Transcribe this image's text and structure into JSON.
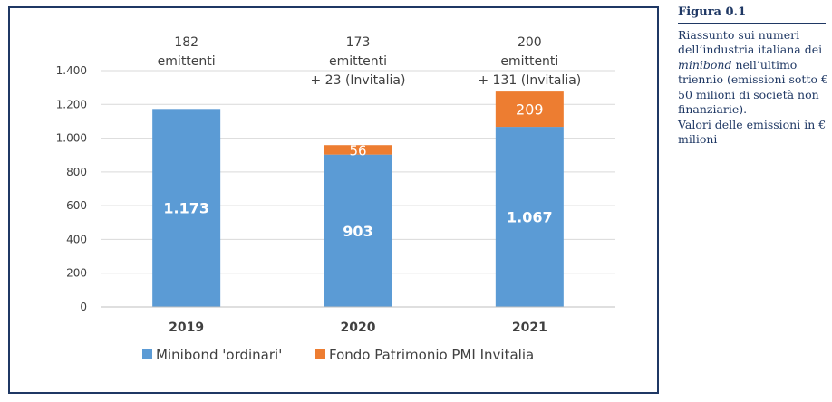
{
  "sidebar": {
    "title": "Figura 0.1",
    "caption_a": "Riassunto sui numeri dell’industria italiana dei ",
    "caption_em": "minibond",
    "caption_b": " nell’ultimo triennio (emissioni sotto € 50 milioni di società non finanziarie).",
    "caption_c": "Valori delle emissioni in € milioni"
  },
  "colors": {
    "ordinari": "#5b9bd5",
    "invitalia": "#ed7d31",
    "grid": "#d9d9d9",
    "axis_text": "#404040",
    "frame": "#1f3864"
  },
  "chart_data": {
    "type": "bar",
    "stacked": true,
    "categories": [
      "2019",
      "2020",
      "2021"
    ],
    "series": [
      {
        "name": "Minibond 'ordinari'",
        "values": [
          1173,
          903,
          1067
        ],
        "labels": [
          "1.173",
          "903",
          "1.067"
        ]
      },
      {
        "name": "Fondo Patrimonio PMI Invitalia",
        "values": [
          0,
          56,
          209
        ],
        "labels": [
          "",
          "56",
          "209"
        ]
      }
    ],
    "ylim": [
      0,
      1400
    ],
    "yticks": [
      0,
      200,
      400,
      600,
      800,
      1000,
      1200,
      1400
    ],
    "ytick_labels": [
      "0",
      "200",
      "400",
      "600",
      "800",
      "1.000",
      "1.200",
      "1.400"
    ],
    "annotations": [
      [
        "182",
        "emittenti"
      ],
      [
        "173",
        "emittenti",
        "+ 23 (Invitalia)"
      ],
      [
        "200",
        "emittenti",
        "+ 131 (Invitalia)"
      ]
    ],
    "grid": true,
    "legend": "bottom"
  }
}
